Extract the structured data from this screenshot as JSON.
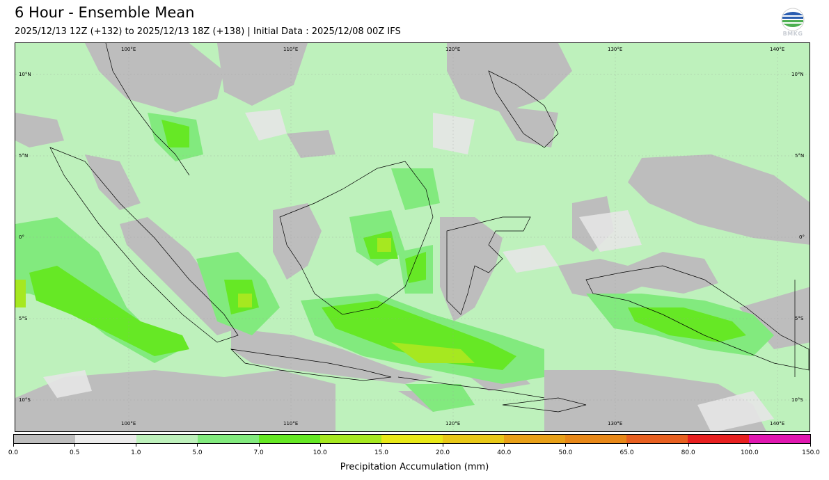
{
  "header": {
    "title": "6 Hour - Ensemble Mean",
    "subtitle": "2025/12/13 12Z (+132) to 2025/12/13 18Z (+138) | Initial Data : 2025/12/08 00Z IFS",
    "logo_text": "BMKG"
  },
  "map": {
    "lon_labels_top": [
      "100°E",
      "110°E",
      "120°E",
      "130°E",
      "140°E"
    ],
    "lon_labels_bottom": [
      "100°E",
      "110°E",
      "120°E",
      "130°E",
      "140°E"
    ],
    "lat_labels_left": [
      "10°N",
      "5°N",
      "0°",
      "5°S",
      "10°S"
    ],
    "lat_labels_right": [
      "10°N",
      "5°N",
      "0°",
      "5°S",
      "10°S"
    ],
    "ocean_color": "#bef1bc",
    "land_dry_color": "#bdbdbd"
  },
  "colorbar": {
    "title": "Precipitation Accumulation (mm)",
    "ticks": [
      "0.0",
      "0.5",
      "1.0",
      "5.0",
      "7.0",
      "10.0",
      "15.0",
      "20.0",
      "40.0",
      "50.0",
      "65.0",
      "80.0",
      "100.0",
      "150.0"
    ],
    "colors": [
      "#bdbdbd",
      "#eaeaea",
      "#bef1bc",
      "#82ea7e",
      "#66e825",
      "#a6e820",
      "#e8e818",
      "#e8c818",
      "#e8a018",
      "#e88818",
      "#e86020",
      "#e82020",
      "#e018b0"
    ]
  }
}
